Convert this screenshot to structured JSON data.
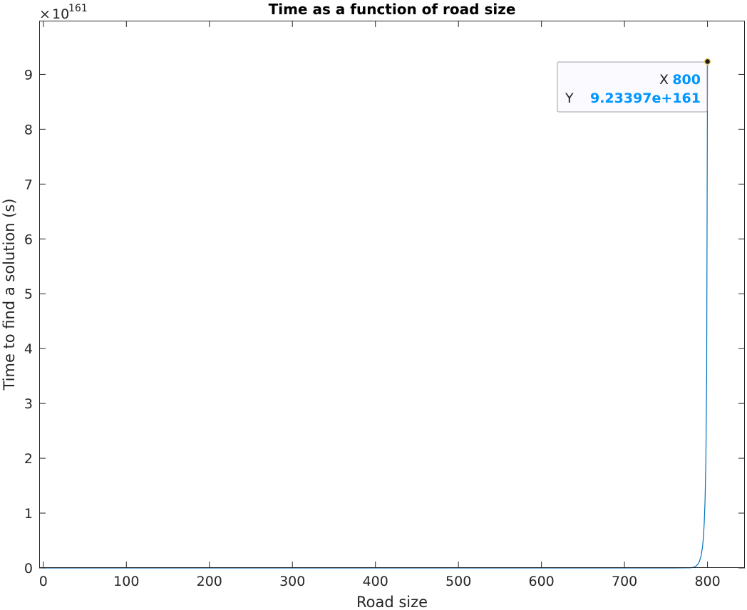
{
  "chart_data": {
    "type": "line",
    "title": "Time as a function of road size",
    "xlabel": "Road size",
    "ylabel": "Time to find a solution (s)",
    "xlim": [
      -5,
      845
    ],
    "ylim": [
      0,
      9.98
    ],
    "y_exponent_label": "10",
    "y_exponent_power": "161",
    "y_exponent_prefix": "×",
    "x_ticks": [
      0,
      100,
      200,
      300,
      400,
      500,
      600,
      700,
      800
    ],
    "x_tick_labels": [
      "0",
      "100",
      "200",
      "300",
      "400",
      "500",
      "600",
      "700",
      "800"
    ],
    "y_ticks": [
      0,
      1,
      2,
      3,
      4,
      5,
      6,
      7,
      8,
      9
    ],
    "y_tick_labels": [
      "0",
      "1",
      "2",
      "3",
      "4",
      "5",
      "6",
      "7",
      "8",
      "9"
    ],
    "grid": false,
    "series": [
      {
        "color": "#0072BD",
        "x": [
          0,
          100,
          200,
          300,
          400,
          500,
          600,
          700,
          760,
          780,
          785,
          788,
          790,
          792,
          794,
          795,
          796,
          797,
          798,
          799,
          800
        ],
        "y": [
          0,
          0,
          0,
          0,
          0,
          0,
          0,
          0,
          0,
          0.003,
          0.02,
          0.06,
          0.11,
          0.2,
          0.38,
          0.55,
          0.8,
          1.2,
          1.9,
          3.5,
          9.23397
        ]
      }
    ],
    "datatip": {
      "x_key": "X",
      "x_value": "800",
      "y_key": "Y",
      "y_value": "9.23397e+161",
      "point": [
        800,
        9.23397
      ]
    }
  }
}
